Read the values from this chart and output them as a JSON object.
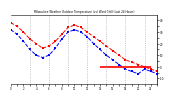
{
  "title": "Milwaukee Weather Outdoor Temperature (vs) Wind Chill (Last 24 Hours)",
  "temp": [
    38,
    35,
    30,
    24,
    20,
    16,
    18,
    22,
    28,
    34,
    36,
    34,
    30,
    26,
    22,
    18,
    14,
    10,
    6,
    4,
    2,
    0,
    -2,
    -4
  ],
  "wind_chill": [
    32,
    28,
    22,
    15,
    10,
    8,
    10,
    16,
    24,
    30,
    32,
    30,
    26,
    20,
    15,
    10,
    6,
    2,
    -2,
    -4,
    -6,
    -2,
    -4,
    -6
  ],
  "freeze_x_start": 14,
  "freeze_x_end": 22,
  "freeze_y": 0,
  "temp_color": "#ff0000",
  "wind_chill_color": "#0000ff",
  "freeze_color": "#ff0000",
  "grid_color": "#888888",
  "bg_color": "#ffffff",
  "ylim": [
    -15,
    45
  ],
  "xlim": [
    0,
    23
  ],
  "ytick_values": [
    -10,
    -5,
    0,
    5,
    10,
    15,
    20,
    25,
    30,
    35,
    40
  ],
  "ytick_labels": [
    "-10",
    "",
    "0",
    "",
    "10",
    "",
    "20",
    "",
    "30",
    "",
    "40"
  ],
  "marker_size": 1.8,
  "line_width": 0.7,
  "dpi": 100
}
